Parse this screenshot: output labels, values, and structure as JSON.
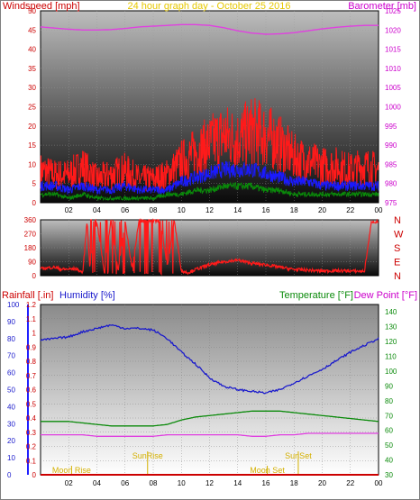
{
  "panel1": {
    "title_left": "Windspeed [mph]",
    "title_center": "24 hour graph day - October 25 2016",
    "title_right": "Barometer [mb]",
    "colors": {
      "wind": "#ff1a1a",
      "wind_avg": "#1a1aff",
      "wind_low": "#0a8a0a",
      "barometer": "#e040e0",
      "title_left": "#cc0000",
      "title_center": "#e6c800",
      "title_right": "#cc00cc"
    },
    "left_ticks": [
      "0",
      "5",
      "10",
      "15",
      "20",
      "25",
      "30",
      "35",
      "40",
      "45",
      "50"
    ],
    "right_ticks": [
      "975",
      "980",
      "985",
      "990",
      "995",
      "1000",
      "1005",
      "1010",
      "1015",
      "1020",
      "1025"
    ],
    "x_ticks": [
      "02",
      "04",
      "06",
      "08",
      "10",
      "12",
      "14",
      "16",
      "18",
      "20",
      "22",
      "00"
    ]
  },
  "panel2": {
    "left_ticks": [
      "0",
      "90",
      "180",
      "270",
      "360"
    ],
    "right_labels": [
      "N",
      "W",
      "S",
      "E",
      "N"
    ],
    "colors": {
      "direction": "#ff1a1a",
      "labels": "#cc0000"
    }
  },
  "panel3": {
    "title_rain": "Rainfall [.in]",
    "title_humidity": "Humidity [%]",
    "title_temp": "Temperature [°F]",
    "title_dew": "Dew Point [°F]",
    "colors": {
      "rain": "#cc0000",
      "humidity": "#1a1acc",
      "temp": "#0a8a0a",
      "dew": "#e040e0",
      "rain_axis": "#2020ff"
    },
    "humidity_ticks": [
      "0",
      "10",
      "20",
      "30",
      "40",
      "50",
      "60",
      "70",
      "80",
      "90",
      "100"
    ],
    "rain_ticks": [
      "0",
      "0.1",
      "0.2",
      "0.3",
      "0.4",
      "0.5",
      "0.6",
      "0.7",
      "0.8",
      "0.9",
      "1",
      "1.1",
      "1.2"
    ],
    "temp_ticks": [
      "30",
      "40",
      "50",
      "60",
      "70",
      "80",
      "90",
      "100",
      "110",
      "120",
      "130",
      "140"
    ],
    "x_ticks": [
      "02",
      "04",
      "06",
      "08",
      "10",
      "12",
      "14",
      "16",
      "18",
      "20",
      "22",
      "00"
    ],
    "annotations": {
      "moon_rise": "Moon Rise",
      "sun_rise": "SunRise",
      "sun_set": "SunSet",
      "moon_set": "Moon Set"
    }
  },
  "chart_data": [
    {
      "type": "line",
      "title": "24 hour graph day - October 25 2016",
      "xlabel": "",
      "ylabel": "Windspeed [mph]",
      "ylabel_right": "Barometer [mb]",
      "x_unit": "hour",
      "x_range": [
        0,
        24
      ],
      "ylim": [
        0,
        50
      ],
      "ylim_right": [
        975,
        1025
      ],
      "series": [
        {
          "name": "Windspeed [mph]",
          "axis": "left",
          "x": [
            0,
            1,
            2,
            3,
            4,
            5,
            6,
            7,
            8,
            9,
            10,
            11,
            12,
            13,
            14,
            15,
            16,
            17,
            18,
            19,
            20,
            21,
            22,
            23,
            24
          ],
          "values": [
            7,
            6,
            6,
            8,
            5,
            6,
            7,
            5,
            5,
            6,
            9,
            11,
            13,
            15,
            14,
            16,
            15,
            13,
            10,
            9,
            8,
            8,
            7,
            8,
            7
          ]
        },
        {
          "axis": "left",
          "x": [
            0,
            1,
            2,
            3,
            4,
            5,
            6,
            7,
            8,
            9,
            10,
            11,
            12,
            13,
            14,
            15,
            16,
            17,
            18,
            19,
            20,
            21,
            22,
            23,
            24
          ],
          "values": [
            4,
            4,
            3,
            4,
            3,
            3,
            4,
            3,
            3,
            3,
            5,
            6,
            7,
            8,
            8,
            8,
            7,
            6,
            5,
            5,
            4,
            4,
            4,
            4,
            4
          ]
        },
        {
          "axis": "left",
          "x": [
            0,
            1,
            2,
            3,
            4,
            5,
            6,
            7,
            8,
            9,
            10,
            11,
            12,
            13,
            14,
            15,
            16,
            17,
            18,
            19,
            20,
            21,
            22,
            23,
            24
          ],
          "values": [
            2,
            2,
            1,
            2,
            1,
            1,
            1,
            1,
            1,
            2,
            2,
            3,
            3,
            4,
            4,
            4,
            3,
            3,
            2,
            2,
            2,
            2,
            2,
            2,
            2
          ]
        },
        {
          "name": "Barometer [mb]",
          "axis": "right",
          "x": [
            0,
            1,
            2,
            3,
            4,
            5,
            6,
            7,
            8,
            9,
            10,
            11,
            12,
            13,
            14,
            15,
            16,
            17,
            18,
            19,
            20,
            21,
            22,
            23,
            24
          ],
          "values": [
            1020.8,
            1020.5,
            1020.2,
            1020.0,
            1020.0,
            1020.1,
            1020.4,
            1020.8,
            1021.0,
            1021.2,
            1021.4,
            1021.4,
            1021.2,
            1020.6,
            1019.8,
            1019.2,
            1018.9,
            1019.0,
            1019.3,
            1019.8,
            1020.3,
            1020.7,
            1021.0,
            1021.2,
            1021.2
          ]
        }
      ]
    },
    {
      "type": "line",
      "ylabel": "",
      "x_unit": "hour",
      "x_range": [
        0,
        24
      ],
      "ylim": [
        0,
        360
      ],
      "series": [
        {
          "x": [
            0,
            0.5,
            1,
            1.5,
            2,
            2.5,
            3,
            3.3,
            3.5,
            4,
            4.5,
            5,
            5.5,
            6,
            6.5,
            7,
            7.5,
            8,
            8.5,
            9,
            9.5,
            10,
            10.5,
            11,
            12,
            13,
            14,
            15,
            16,
            17,
            18,
            19,
            20,
            21,
            22,
            23,
            23.5,
            24
          ],
          "values": [
            45,
            50,
            55,
            40,
            42,
            45,
            20,
            350,
            60,
            350,
            40,
            355,
            30,
            350,
            50,
            355,
            350,
            355,
            350,
            60,
            355,
            30,
            20,
            40,
            70,
            90,
            100,
            80,
            70,
            55,
            40,
            35,
            30,
            32,
            30,
            28,
            350,
            345
          ]
        }
      ]
    },
    {
      "type": "line",
      "ylabel": "Humidity [%]",
      "ylabel_left_inner": "Rainfall [.in]",
      "ylabel_right": "Temperature [°F]",
      "ylabel_right_inner": "Dew Point [°F]",
      "x_unit": "hour",
      "x_range": [
        0,
        24
      ],
      "ylim": [
        0,
        100
      ],
      "ylim_rain": [
        0,
        1.2
      ],
      "ylim_right": [
        30,
        145
      ],
      "series": [
        {
          "name": "Humidity [%]",
          "axis": "humidity",
          "x": [
            0,
            1,
            2,
            3,
            4,
            5,
            6,
            7,
            8,
            9,
            10,
            11,
            12,
            13,
            14,
            15,
            16,
            17,
            18,
            19,
            20,
            21,
            22,
            23,
            24
          ],
          "values": [
            79,
            80,
            81,
            84,
            86,
            88,
            86,
            86,
            85,
            80,
            72,
            65,
            57,
            52,
            50,
            49,
            48,
            50,
            54,
            58,
            62,
            67,
            72,
            76,
            80
          ]
        },
        {
          "name": "Temperature [°F]",
          "axis": "temp",
          "x": [
            0,
            1,
            2,
            3,
            4,
            5,
            6,
            7,
            8,
            9,
            10,
            11,
            12,
            13,
            14,
            15,
            16,
            17,
            18,
            19,
            20,
            21,
            22,
            23,
            24
          ],
          "values": [
            66,
            66,
            66,
            65,
            64,
            63,
            63,
            63,
            63,
            64,
            67,
            69,
            70,
            71,
            72,
            73,
            73,
            73,
            72,
            71,
            70,
            69,
            68,
            67,
            66
          ]
        },
        {
          "name": "Dew Point [°F]",
          "axis": "temp",
          "x": [
            0,
            1,
            2,
            3,
            4,
            5,
            6,
            7,
            8,
            9,
            10,
            11,
            12,
            13,
            14,
            15,
            16,
            17,
            18,
            19,
            20,
            21,
            22,
            23,
            24
          ],
          "values": [
            57,
            57,
            57,
            57,
            56,
            56,
            56,
            56,
            56,
            57,
            57,
            57,
            57,
            57,
            57,
            56,
            56,
            57,
            57,
            58,
            58,
            58,
            58,
            58,
            58
          ]
        },
        {
          "name": "Rainfall [.in]",
          "axis": "rain",
          "x": [
            0,
            24
          ],
          "values": [
            0,
            0
          ]
        }
      ],
      "annotations": [
        {
          "label": "Moon Rise",
          "x": 2.2
        },
        {
          "label": "SunRise",
          "x": 7.6
        },
        {
          "label": "SunSet",
          "x": 18.3
        },
        {
          "label": "Moon Set",
          "x": 16.1
        }
      ]
    }
  ]
}
